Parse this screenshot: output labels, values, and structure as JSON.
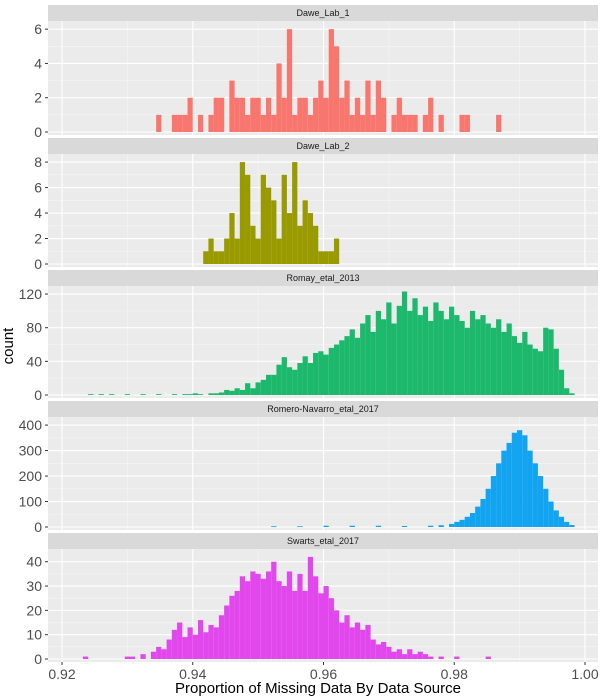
{
  "chart_data": {
    "type": "bar",
    "subtype": "faceted-histogram",
    "xlabel": "Proportion of Missing Data By Data Source",
    "ylabel": "count",
    "xlim": [
      0.92,
      1.0
    ],
    "xticks": [
      0.92,
      0.94,
      0.96,
      0.98,
      1.0
    ],
    "xtick_labels": [
      "0.92",
      "0.94",
      "0.96",
      "0.98",
      "1.00"
    ],
    "bin_width": 0.0008,
    "grid": true,
    "legend": "none",
    "facets": [
      {
        "name": "Dawe_Lab_1",
        "color": "#F8766D",
        "ylim": [
          0,
          6.3
        ],
        "yticks": [
          0,
          2,
          4,
          6
        ],
        "bins": [
          [
            0.9344,
            1
          ],
          [
            0.936,
            0
          ],
          [
            0.9368,
            1
          ],
          [
            0.9376,
            1
          ],
          [
            0.9384,
            1
          ],
          [
            0.9392,
            2
          ],
          [
            0.9408,
            1
          ],
          [
            0.9424,
            1
          ],
          [
            0.9432,
            2
          ],
          [
            0.944,
            2
          ],
          [
            0.9448,
            0
          ],
          [
            0.9456,
            3
          ],
          [
            0.9464,
            2
          ],
          [
            0.9472,
            2
          ],
          [
            0.948,
            1
          ],
          [
            0.9488,
            2
          ],
          [
            0.9496,
            2
          ],
          [
            0.9504,
            1
          ],
          [
            0.9512,
            2
          ],
          [
            0.952,
            1
          ],
          [
            0.9528,
            4
          ],
          [
            0.9536,
            2
          ],
          [
            0.9544,
            6
          ],
          [
            0.9552,
            1
          ],
          [
            0.956,
            2
          ],
          [
            0.9568,
            2
          ],
          [
            0.9576,
            1
          ],
          [
            0.9584,
            2
          ],
          [
            0.9592,
            3
          ],
          [
            0.96,
            2
          ],
          [
            0.9608,
            6
          ],
          [
            0.9616,
            5
          ],
          [
            0.9624,
            2
          ],
          [
            0.9632,
            3
          ],
          [
            0.964,
            1
          ],
          [
            0.9648,
            2
          ],
          [
            0.9656,
            1
          ],
          [
            0.9664,
            3
          ],
          [
            0.9672,
            1
          ],
          [
            0.968,
            3
          ],
          [
            0.9688,
            2
          ],
          [
            0.9704,
            1
          ],
          [
            0.9712,
            2
          ],
          [
            0.972,
            1
          ],
          [
            0.9728,
            1
          ],
          [
            0.9736,
            1
          ],
          [
            0.9752,
            1
          ],
          [
            0.976,
            2
          ],
          [
            0.9776,
            1
          ],
          [
            0.9808,
            1
          ],
          [
            0.9816,
            1
          ],
          [
            0.9864,
            1
          ]
        ]
      },
      {
        "name": "Dawe_Lab_2",
        "color": "#999900",
        "ylim": [
          0,
          8.4
        ],
        "yticks": [
          0,
          2,
          4,
          6,
          8
        ],
        "bins": [
          [
            0.9416,
            1
          ],
          [
            0.9424,
            2
          ],
          [
            0.9432,
            1
          ],
          [
            0.944,
            1
          ],
          [
            0.9448,
            2
          ],
          [
            0.9456,
            4
          ],
          [
            0.9464,
            2
          ],
          [
            0.9472,
            8
          ],
          [
            0.948,
            7
          ],
          [
            0.9488,
            3
          ],
          [
            0.9496,
            2
          ],
          [
            0.9504,
            7
          ],
          [
            0.9512,
            6
          ],
          [
            0.952,
            5
          ],
          [
            0.9528,
            2
          ],
          [
            0.9536,
            7
          ],
          [
            0.9544,
            4
          ],
          [
            0.9552,
            8
          ],
          [
            0.956,
            3
          ],
          [
            0.9568,
            5
          ],
          [
            0.9576,
            4
          ],
          [
            0.9584,
            3
          ],
          [
            0.9592,
            1
          ],
          [
            0.96,
            1
          ],
          [
            0.9608,
            1
          ],
          [
            0.9616,
            2
          ]
        ]
      },
      {
        "name": "Romay_etal_2013",
        "color": "#1CB86B",
        "ylim": [
          0,
          126
        ],
        "yticks": [
          0,
          40,
          80,
          120
        ],
        "bins": [
          [
            0.924,
            1
          ],
          [
            0.9256,
            1
          ],
          [
            0.9272,
            1
          ],
          [
            0.9296,
            1
          ],
          [
            0.932,
            1
          ],
          [
            0.9344,
            1
          ],
          [
            0.9368,
            1
          ],
          [
            0.9384,
            1
          ],
          [
            0.9392,
            1
          ],
          [
            0.94,
            2
          ],
          [
            0.9408,
            1
          ],
          [
            0.9424,
            2
          ],
          [
            0.9432,
            2
          ],
          [
            0.944,
            3
          ],
          [
            0.9448,
            6
          ],
          [
            0.9456,
            5
          ],
          [
            0.9464,
            8
          ],
          [
            0.9472,
            6
          ],
          [
            0.948,
            14
          ],
          [
            0.9488,
            8
          ],
          [
            0.9496,
            15
          ],
          [
            0.9504,
            18
          ],
          [
            0.9512,
            24
          ],
          [
            0.952,
            24
          ],
          [
            0.9528,
            36
          ],
          [
            0.9536,
            45
          ],
          [
            0.9544,
            33
          ],
          [
            0.9552,
            30
          ],
          [
            0.956,
            38
          ],
          [
            0.9568,
            46
          ],
          [
            0.9576,
            38
          ],
          [
            0.9584,
            50
          ],
          [
            0.9592,
            52
          ],
          [
            0.96,
            48
          ],
          [
            0.9608,
            56
          ],
          [
            0.9616,
            60
          ],
          [
            0.9624,
            65
          ],
          [
            0.9632,
            70
          ],
          [
            0.964,
            78
          ],
          [
            0.9648,
            68
          ],
          [
            0.9656,
            85
          ],
          [
            0.9664,
            95
          ],
          [
            0.9672,
            75
          ],
          [
            0.968,
            100
          ],
          [
            0.9688,
            90
          ],
          [
            0.9696,
            110
          ],
          [
            0.9704,
            85
          ],
          [
            0.9712,
            106
          ],
          [
            0.972,
            123
          ],
          [
            0.9728,
            100
          ],
          [
            0.9736,
            115
          ],
          [
            0.9744,
            95
          ],
          [
            0.9752,
            105
          ],
          [
            0.976,
            88
          ],
          [
            0.9768,
            110
          ],
          [
            0.9776,
            100
          ],
          [
            0.9784,
            90
          ],
          [
            0.9792,
            105
          ],
          [
            0.98,
            95
          ],
          [
            0.9808,
            88
          ],
          [
            0.9816,
            80
          ],
          [
            0.9824,
            100
          ],
          [
            0.9832,
            90
          ],
          [
            0.984,
            95
          ],
          [
            0.9848,
            85
          ],
          [
            0.9856,
            80
          ],
          [
            0.9864,
            90
          ],
          [
            0.9872,
            75
          ],
          [
            0.988,
            85
          ],
          [
            0.9888,
            70
          ],
          [
            0.9896,
            62
          ],
          [
            0.9904,
            75
          ],
          [
            0.9912,
            60
          ],
          [
            0.992,
            55
          ],
          [
            0.9928,
            52
          ],
          [
            0.9936,
            80
          ],
          [
            0.9944,
            78
          ],
          [
            0.9952,
            55
          ],
          [
            0.996,
            30
          ],
          [
            0.9968,
            8
          ],
          [
            0.9976,
            2
          ]
        ]
      },
      {
        "name": "Romero-Navarro_etal_2017",
        "color": "#12A4F0",
        "ylim": [
          0,
          420
        ],
        "yticks": [
          0,
          100,
          200,
          300,
          400
        ],
        "bins": [
          [
            0.952,
            3
          ],
          [
            0.956,
            3
          ],
          [
            0.96,
            5
          ],
          [
            0.964,
            5
          ],
          [
            0.968,
            5
          ],
          [
            0.972,
            4
          ],
          [
            0.976,
            5
          ],
          [
            0.9776,
            7
          ],
          [
            0.9792,
            12
          ],
          [
            0.98,
            20
          ],
          [
            0.9808,
            28
          ],
          [
            0.9816,
            40
          ],
          [
            0.9824,
            55
          ],
          [
            0.9832,
            80
          ],
          [
            0.984,
            110
          ],
          [
            0.9848,
            150
          ],
          [
            0.9856,
            200
          ],
          [
            0.9864,
            250
          ],
          [
            0.9872,
            300
          ],
          [
            0.988,
            330
          ],
          [
            0.9888,
            370
          ],
          [
            0.9896,
            380
          ],
          [
            0.9904,
            360
          ],
          [
            0.9912,
            300
          ],
          [
            0.992,
            250
          ],
          [
            0.9928,
            200
          ],
          [
            0.9936,
            150
          ],
          [
            0.9944,
            100
          ],
          [
            0.9952,
            65
          ],
          [
            0.996,
            40
          ],
          [
            0.9968,
            20
          ],
          [
            0.9976,
            8
          ]
        ]
      },
      {
        "name": "Swarts_etal_2017",
        "color": "#E247EE",
        "ylim": [
          0,
          44
        ],
        "yticks": [
          0,
          10,
          20,
          30,
          40
        ],
        "bins": [
          [
            0.9232,
            1
          ],
          [
            0.9296,
            1
          ],
          [
            0.9304,
            1
          ],
          [
            0.932,
            2
          ],
          [
            0.9336,
            3
          ],
          [
            0.9344,
            5
          ],
          [
            0.9352,
            4
          ],
          [
            0.936,
            8
          ],
          [
            0.9368,
            12
          ],
          [
            0.9376,
            15
          ],
          [
            0.9384,
            9
          ],
          [
            0.9392,
            13
          ],
          [
            0.94,
            10
          ],
          [
            0.9408,
            16
          ],
          [
            0.9416,
            11
          ],
          [
            0.9424,
            14
          ],
          [
            0.9432,
            13
          ],
          [
            0.944,
            18
          ],
          [
            0.9448,
            22
          ],
          [
            0.9456,
            26
          ],
          [
            0.9464,
            28
          ],
          [
            0.9472,
            34
          ],
          [
            0.948,
            32
          ],
          [
            0.9488,
            36
          ],
          [
            0.9496,
            35
          ],
          [
            0.9504,
            33
          ],
          [
            0.9512,
            36
          ],
          [
            0.952,
            40
          ],
          [
            0.9528,
            32
          ],
          [
            0.9536,
            30
          ],
          [
            0.9544,
            36
          ],
          [
            0.9552,
            28
          ],
          [
            0.956,
            35
          ],
          [
            0.9568,
            28
          ],
          [
            0.9576,
            42
          ],
          [
            0.9584,
            34
          ],
          [
            0.9592,
            27
          ],
          [
            0.96,
            30
          ],
          [
            0.9608,
            25
          ],
          [
            0.9616,
            20
          ],
          [
            0.9624,
            15
          ],
          [
            0.9632,
            18
          ],
          [
            0.964,
            13
          ],
          [
            0.9648,
            15
          ],
          [
            0.9656,
            12
          ],
          [
            0.9664,
            14
          ],
          [
            0.9672,
            8
          ],
          [
            0.968,
            6
          ],
          [
            0.9688,
            7
          ],
          [
            0.9696,
            5
          ],
          [
            0.9704,
            3
          ],
          [
            0.9712,
            4
          ],
          [
            0.972,
            2
          ],
          [
            0.9728,
            4
          ],
          [
            0.9736,
            2
          ],
          [
            0.9744,
            3
          ],
          [
            0.9752,
            2
          ],
          [
            0.976,
            1
          ],
          [
            0.9776,
            1
          ],
          [
            0.98,
            1
          ],
          [
            0.9848,
            1
          ]
        ]
      }
    ]
  }
}
